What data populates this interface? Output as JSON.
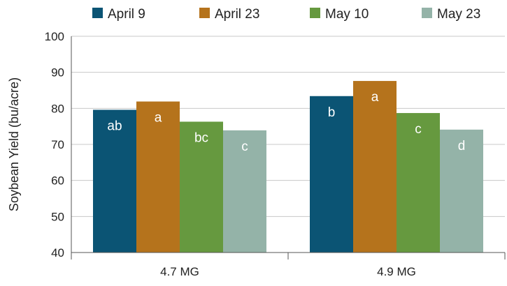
{
  "chart_data": {
    "type": "bar",
    "categories": [
      "4.7 MG",
      "4.9 MG"
    ],
    "series": [
      {
        "name": "April 9",
        "color": "#0b5474",
        "values": [
          79.6,
          83.4
        ],
        "labels": [
          "ab",
          "b"
        ]
      },
      {
        "name": "April 23",
        "color": "#b5731c",
        "values": [
          81.9,
          87.6
        ],
        "labels": [
          "a",
          "a"
        ]
      },
      {
        "name": "May 10",
        "color": "#66993f",
        "values": [
          76.3,
          78.7
        ],
        "labels": [
          "bc",
          "c"
        ]
      },
      {
        "name": "May 23",
        "color": "#94b3a8",
        "values": [
          73.9,
          74.1
        ],
        "labels": [
          "c",
          "d"
        ]
      }
    ],
    "title": "",
    "xlabel": "",
    "ylabel": "Soybean Yield (bu/acre)",
    "ylim": [
      40,
      100
    ],
    "yticks": [
      40,
      50,
      60,
      70,
      80,
      90,
      100
    ],
    "grid": true,
    "legend_position": "top"
  }
}
